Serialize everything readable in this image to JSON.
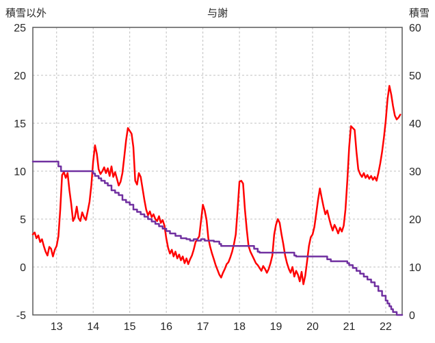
{
  "header": {
    "title": "与謝",
    "left_axis_label": "積雪以外",
    "right_axis_label": "積雪"
  },
  "colors": {
    "series_red": "#ff0000",
    "series_purple": "#7030a0",
    "grid": "#bfbfbf",
    "border": "#595959",
    "text": "#262626"
  },
  "chart_data": {
    "type": "line",
    "title": "与謝",
    "xlabel": "",
    "grid": "dashed",
    "legend_position": "none",
    "x_axis": {
      "range": [
        12.35,
        22.45
      ],
      "ticks": [
        13,
        14,
        15,
        16,
        17,
        18,
        19,
        20,
        21,
        22
      ]
    },
    "y_left": {
      "label": "積雪以外",
      "range": [
        -5,
        25
      ],
      "ticks": [
        25,
        20,
        15,
        10,
        5,
        0,
        -5
      ]
    },
    "y_right": {
      "label": "積雪",
      "range": [
        0,
        60
      ],
      "ticks": [
        60,
        50,
        40,
        30,
        20,
        10,
        0
      ]
    },
    "series": [
      {
        "name": "積雪以外",
        "axis": "left",
        "color": "#ff0000",
        "step": false,
        "points": [
          [
            12.35,
            3.4
          ],
          [
            12.4,
            3.6
          ],
          [
            12.45,
            3.0
          ],
          [
            12.5,
            3.3
          ],
          [
            12.55,
            2.6
          ],
          [
            12.6,
            2.9
          ],
          [
            12.65,
            2.2
          ],
          [
            12.7,
            1.6
          ],
          [
            12.75,
            1.2
          ],
          [
            12.8,
            2.1
          ],
          [
            12.85,
            1.9
          ],
          [
            12.9,
            1.1
          ],
          [
            12.95,
            1.8
          ],
          [
            13.0,
            2.2
          ],
          [
            13.05,
            3.2
          ],
          [
            13.1,
            6.0
          ],
          [
            13.15,
            9.6
          ],
          [
            13.2,
            9.9
          ],
          [
            13.25,
            9.3
          ],
          [
            13.3,
            9.8
          ],
          [
            13.35,
            8.0
          ],
          [
            13.4,
            6.6
          ],
          [
            13.45,
            4.8
          ],
          [
            13.5,
            5.2
          ],
          [
            13.55,
            6.3
          ],
          [
            13.6,
            5.1
          ],
          [
            13.65,
            4.8
          ],
          [
            13.7,
            5.7
          ],
          [
            13.75,
            5.2
          ],
          [
            13.8,
            4.9
          ],
          [
            13.85,
            5.8
          ],
          [
            13.9,
            6.8
          ],
          [
            13.95,
            8.5
          ],
          [
            14.0,
            11.0
          ],
          [
            14.05,
            12.7
          ],
          [
            14.1,
            11.8
          ],
          [
            14.15,
            10.2
          ],
          [
            14.2,
            9.7
          ],
          [
            14.25,
            10.0
          ],
          [
            14.3,
            10.4
          ],
          [
            14.35,
            9.8
          ],
          [
            14.4,
            10.3
          ],
          [
            14.45,
            9.5
          ],
          [
            14.5,
            10.5
          ],
          [
            14.55,
            9.4
          ],
          [
            14.6,
            9.9
          ],
          [
            14.65,
            9.2
          ],
          [
            14.7,
            8.5
          ],
          [
            14.75,
            8.9
          ],
          [
            14.8,
            9.8
          ],
          [
            14.85,
            11.5
          ],
          [
            14.9,
            13.2
          ],
          [
            14.95,
            14.5
          ],
          [
            15.0,
            14.2
          ],
          [
            15.05,
            13.9
          ],
          [
            15.1,
            12.5
          ],
          [
            15.15,
            9.0
          ],
          [
            15.2,
            8.6
          ],
          [
            15.25,
            9.8
          ],
          [
            15.3,
            9.4
          ],
          [
            15.35,
            8.2
          ],
          [
            15.4,
            7.0
          ],
          [
            15.45,
            6.0
          ],
          [
            15.5,
            5.4
          ],
          [
            15.55,
            5.8
          ],
          [
            15.6,
            5.2
          ],
          [
            15.65,
            5.5
          ],
          [
            15.7,
            5.0
          ],
          [
            15.75,
            4.8
          ],
          [
            15.8,
            5.3
          ],
          [
            15.85,
            4.6
          ],
          [
            15.9,
            4.9
          ],
          [
            15.95,
            4.3
          ],
          [
            16.0,
            3.0
          ],
          [
            16.05,
            2.0
          ],
          [
            16.1,
            1.4
          ],
          [
            16.15,
            1.8
          ],
          [
            16.2,
            1.1
          ],
          [
            16.25,
            1.6
          ],
          [
            16.3,
            0.9
          ],
          [
            16.35,
            1.3
          ],
          [
            16.4,
            0.7
          ],
          [
            16.45,
            1.1
          ],
          [
            16.5,
            0.4
          ],
          [
            16.55,
            0.9
          ],
          [
            16.6,
            0.3
          ],
          [
            16.65,
            0.8
          ],
          [
            16.7,
            1.2
          ],
          [
            16.75,
            1.8
          ],
          [
            16.8,
            2.6
          ],
          [
            16.85,
            2.9
          ],
          [
            16.9,
            3.2
          ],
          [
            16.95,
            4.8
          ],
          [
            17.0,
            6.5
          ],
          [
            17.05,
            5.9
          ],
          [
            17.1,
            4.9
          ],
          [
            17.15,
            3.0
          ],
          [
            17.2,
            2.1
          ],
          [
            17.25,
            1.4
          ],
          [
            17.3,
            0.8
          ],
          [
            17.35,
            0.2
          ],
          [
            17.4,
            -0.3
          ],
          [
            17.45,
            -0.8
          ],
          [
            17.5,
            -1.1
          ],
          [
            17.55,
            -0.6
          ],
          [
            17.6,
            -0.2
          ],
          [
            17.65,
            0.3
          ],
          [
            17.7,
            0.5
          ],
          [
            17.75,
            1.0
          ],
          [
            17.8,
            1.6
          ],
          [
            17.85,
            2.4
          ],
          [
            17.9,
            3.4
          ],
          [
            17.95,
            6.0
          ],
          [
            18.0,
            8.9
          ],
          [
            18.05,
            9.0
          ],
          [
            18.1,
            8.7
          ],
          [
            18.15,
            6.0
          ],
          [
            18.2,
            3.9
          ],
          [
            18.25,
            2.2
          ],
          [
            18.3,
            1.6
          ],
          [
            18.35,
            1.2
          ],
          [
            18.4,
            0.8
          ],
          [
            18.45,
            0.4
          ],
          [
            18.5,
            0.2
          ],
          [
            18.55,
            -0.1
          ],
          [
            18.6,
            -0.4
          ],
          [
            18.65,
            0.1
          ],
          [
            18.7,
            -0.2
          ],
          [
            18.75,
            -0.6
          ],
          [
            18.8,
            -0.2
          ],
          [
            18.85,
            0.4
          ],
          [
            18.9,
            1.2
          ],
          [
            18.95,
            3.4
          ],
          [
            19.0,
            4.4
          ],
          [
            19.05,
            5.0
          ],
          [
            19.1,
            4.6
          ],
          [
            19.15,
            3.4
          ],
          [
            19.2,
            2.4
          ],
          [
            19.25,
            1.2
          ],
          [
            19.3,
            0.4
          ],
          [
            19.35,
            -0.2
          ],
          [
            19.4,
            -0.6
          ],
          [
            19.45,
            0.0
          ],
          [
            19.5,
            -1.0
          ],
          [
            19.55,
            -0.4
          ],
          [
            19.6,
            -0.8
          ],
          [
            19.65,
            -1.5
          ],
          [
            19.7,
            -0.5
          ],
          [
            19.75,
            -1.8
          ],
          [
            19.8,
            -0.9
          ],
          [
            19.85,
            0.6
          ],
          [
            19.9,
            2.2
          ],
          [
            19.95,
            3.1
          ],
          [
            20.0,
            3.4
          ],
          [
            20.05,
            4.2
          ],
          [
            20.1,
            5.6
          ],
          [
            20.15,
            7.0
          ],
          [
            20.2,
            8.2
          ],
          [
            20.25,
            7.2
          ],
          [
            20.3,
            6.3
          ],
          [
            20.35,
            5.5
          ],
          [
            20.4,
            5.9
          ],
          [
            20.45,
            5.1
          ],
          [
            20.5,
            4.4
          ],
          [
            20.55,
            3.8
          ],
          [
            20.6,
            4.4
          ],
          [
            20.65,
            4.0
          ],
          [
            20.7,
            3.5
          ],
          [
            20.75,
            4.1
          ],
          [
            20.8,
            3.7
          ],
          [
            20.85,
            4.3
          ],
          [
            20.9,
            6.0
          ],
          [
            20.95,
            9.0
          ],
          [
            21.0,
            12.5
          ],
          [
            21.05,
            14.7
          ],
          [
            21.1,
            14.5
          ],
          [
            21.15,
            14.3
          ],
          [
            21.2,
            12.0
          ],
          [
            21.25,
            10.2
          ],
          [
            21.3,
            9.7
          ],
          [
            21.35,
            9.4
          ],
          [
            21.4,
            9.8
          ],
          [
            21.45,
            9.3
          ],
          [
            21.5,
            9.6
          ],
          [
            21.55,
            9.2
          ],
          [
            21.6,
            9.5
          ],
          [
            21.65,
            9.1
          ],
          [
            21.7,
            9.4
          ],
          [
            21.75,
            9.0
          ],
          [
            21.8,
            9.8
          ],
          [
            21.85,
            10.8
          ],
          [
            21.9,
            12.0
          ],
          [
            21.95,
            13.5
          ],
          [
            22.0,
            15.2
          ],
          [
            22.05,
            17.5
          ],
          [
            22.1,
            18.9
          ],
          [
            22.15,
            18.0
          ],
          [
            22.2,
            16.8
          ],
          [
            22.25,
            15.8
          ],
          [
            22.3,
            15.4
          ],
          [
            22.35,
            15.6
          ],
          [
            22.4,
            15.9
          ]
        ]
      },
      {
        "name": "積雪",
        "axis": "right",
        "color": "#7030a0",
        "step": true,
        "points": [
          [
            12.35,
            32
          ],
          [
            13.0,
            32
          ],
          [
            13.05,
            31
          ],
          [
            13.12,
            30
          ],
          [
            13.95,
            30
          ],
          [
            14.0,
            29.5
          ],
          [
            14.05,
            29
          ],
          [
            14.15,
            28.5
          ],
          [
            14.22,
            28
          ],
          [
            14.32,
            27.5
          ],
          [
            14.4,
            27
          ],
          [
            14.5,
            26
          ],
          [
            14.6,
            25.5
          ],
          [
            14.7,
            25
          ],
          [
            14.8,
            24
          ],
          [
            14.9,
            23.5
          ],
          [
            15.0,
            23
          ],
          [
            15.1,
            22
          ],
          [
            15.2,
            21.5
          ],
          [
            15.3,
            21
          ],
          [
            15.4,
            20.5
          ],
          [
            15.5,
            20
          ],
          [
            15.6,
            19.5
          ],
          [
            15.7,
            19
          ],
          [
            15.8,
            18.5
          ],
          [
            15.9,
            18
          ],
          [
            16.0,
            17.5
          ],
          [
            16.1,
            17
          ],
          [
            16.25,
            16.5
          ],
          [
            16.4,
            16
          ],
          [
            16.55,
            15.8
          ],
          [
            16.65,
            15.5
          ],
          [
            16.75,
            15.8
          ],
          [
            16.85,
            15.5
          ],
          [
            16.95,
            15.8
          ],
          [
            17.05,
            15.5
          ],
          [
            17.3,
            15.3
          ],
          [
            17.45,
            14.8
          ],
          [
            17.5,
            14.4
          ],
          [
            18.3,
            14.4
          ],
          [
            18.4,
            13.8
          ],
          [
            18.5,
            13.2
          ],
          [
            18.55,
            13.0
          ],
          [
            19.4,
            13.0
          ],
          [
            19.5,
            12.4
          ],
          [
            19.55,
            12.2
          ],
          [
            20.3,
            12.2
          ],
          [
            20.4,
            11.6
          ],
          [
            20.5,
            11.2
          ],
          [
            20.85,
            11.2
          ],
          [
            20.95,
            10.8
          ],
          [
            21.0,
            10.4
          ],
          [
            21.1,
            9.8
          ],
          [
            21.2,
            9.2
          ],
          [
            21.3,
            8.6
          ],
          [
            21.4,
            8.0
          ],
          [
            21.5,
            7.4
          ],
          [
            21.6,
            6.8
          ],
          [
            21.7,
            6.0
          ],
          [
            21.8,
            5.0
          ],
          [
            21.9,
            4.0
          ],
          [
            22.0,
            3.0
          ],
          [
            22.05,
            2.4
          ],
          [
            22.1,
            1.8
          ],
          [
            22.15,
            1.2
          ],
          [
            22.2,
            0.6
          ],
          [
            22.3,
            0.0
          ],
          [
            22.45,
            0.0
          ]
        ]
      }
    ]
  }
}
